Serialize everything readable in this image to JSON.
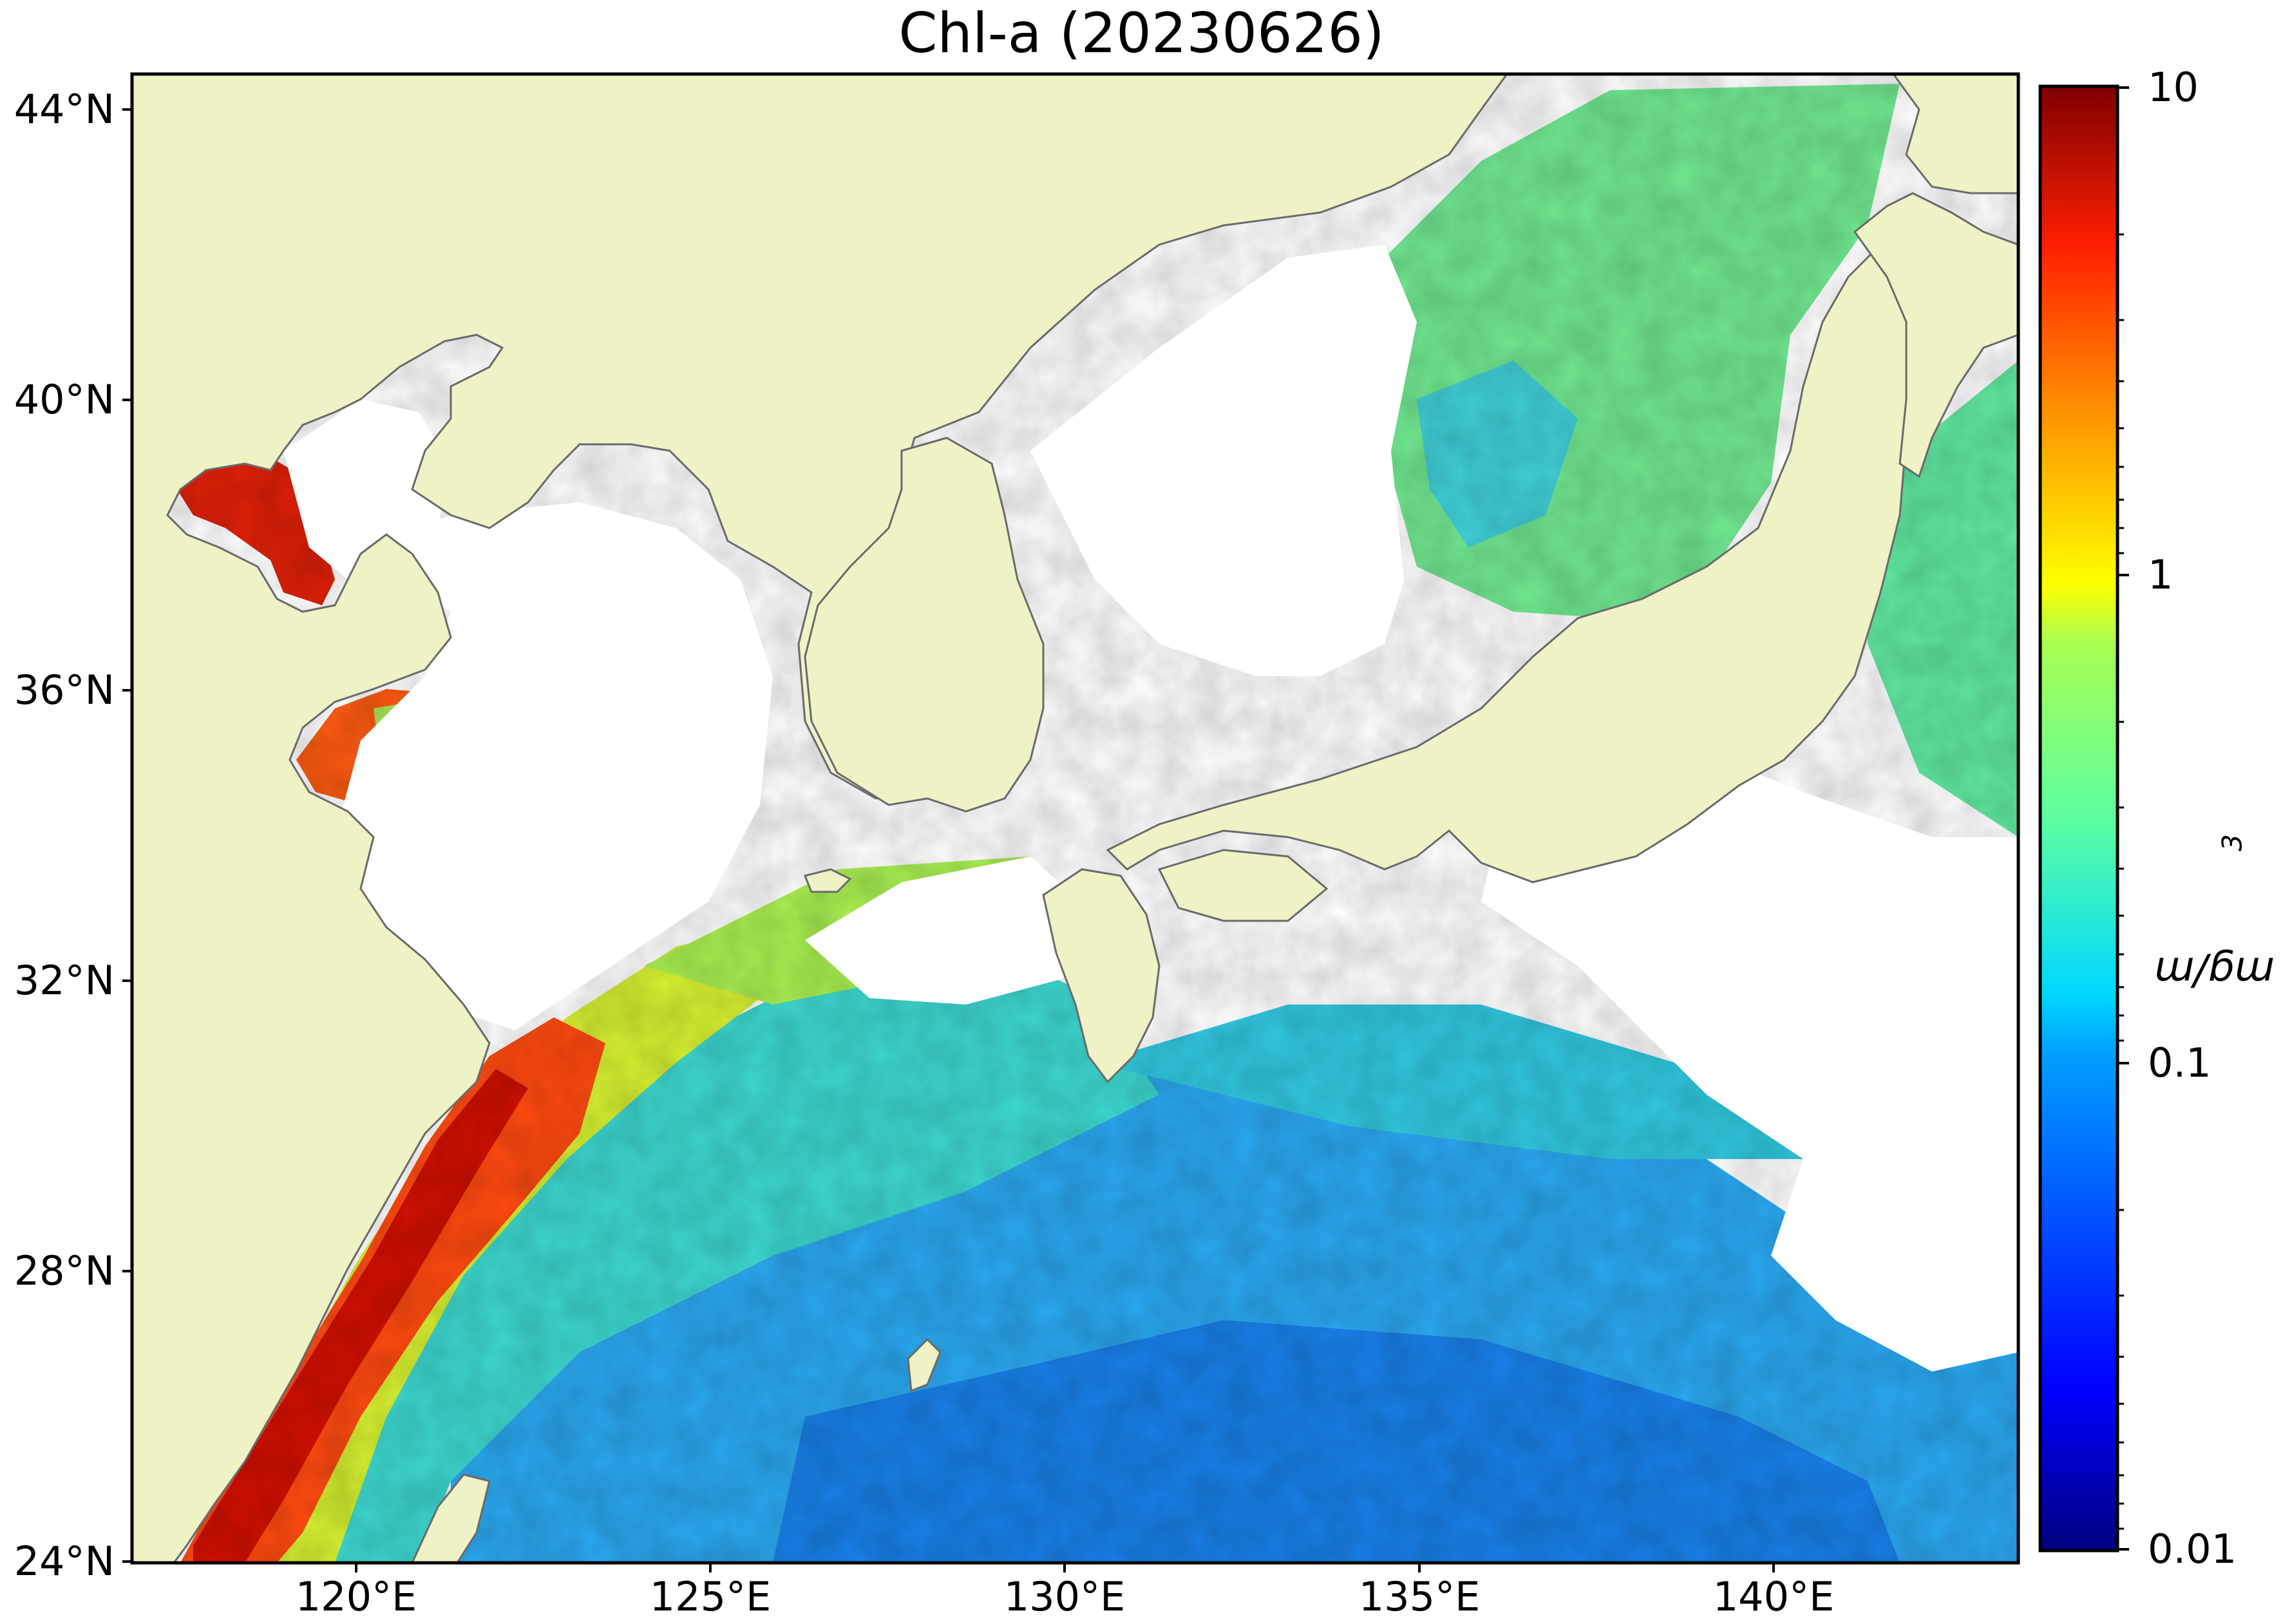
{
  "title": "Chl-a (20230626)",
  "map": {
    "lon_range": [
      116.5,
      143.0
    ],
    "lat_range": [
      24.0,
      44.5
    ],
    "lat_ticks": [
      {
        "value": 44,
        "label": "44°N"
      },
      {
        "value": 40,
        "label": "40°N"
      },
      {
        "value": 36,
        "label": "36°N"
      },
      {
        "value": 32,
        "label": "32°N"
      },
      {
        "value": 28,
        "label": "28°N"
      },
      {
        "value": 24,
        "label": "24°N"
      }
    ],
    "lon_ticks": [
      {
        "value": 120,
        "label": "120°E"
      },
      {
        "value": 125,
        "label": "125°E"
      },
      {
        "value": 130,
        "label": "130°E"
      },
      {
        "value": 135,
        "label": "135°E"
      },
      {
        "value": 140,
        "label": "140°E"
      }
    ],
    "colors": {
      "land": "#eff2c5",
      "coastline": "#6a6a6a",
      "no_data": "#ffffff",
      "frame": "#000000"
    }
  },
  "colorbar": {
    "unit_label": "mg/m",
    "unit_exponent": "3",
    "scale": "log",
    "range": [
      0.01,
      10
    ],
    "colormap": "jet",
    "tick_labels": [
      {
        "value": 10,
        "label": "10"
      },
      {
        "value": 1,
        "label": "1"
      },
      {
        "value": 0.1,
        "label": "0.1"
      },
      {
        "value": 0.01,
        "label": "0.01"
      }
    ],
    "colors": [
      "#00007f",
      "#0000ff",
      "#007fff",
      "#00ffff",
      "#7fff7f",
      "#ffff00",
      "#ff7f00",
      "#ff0000",
      "#7f0000"
    ]
  }
}
